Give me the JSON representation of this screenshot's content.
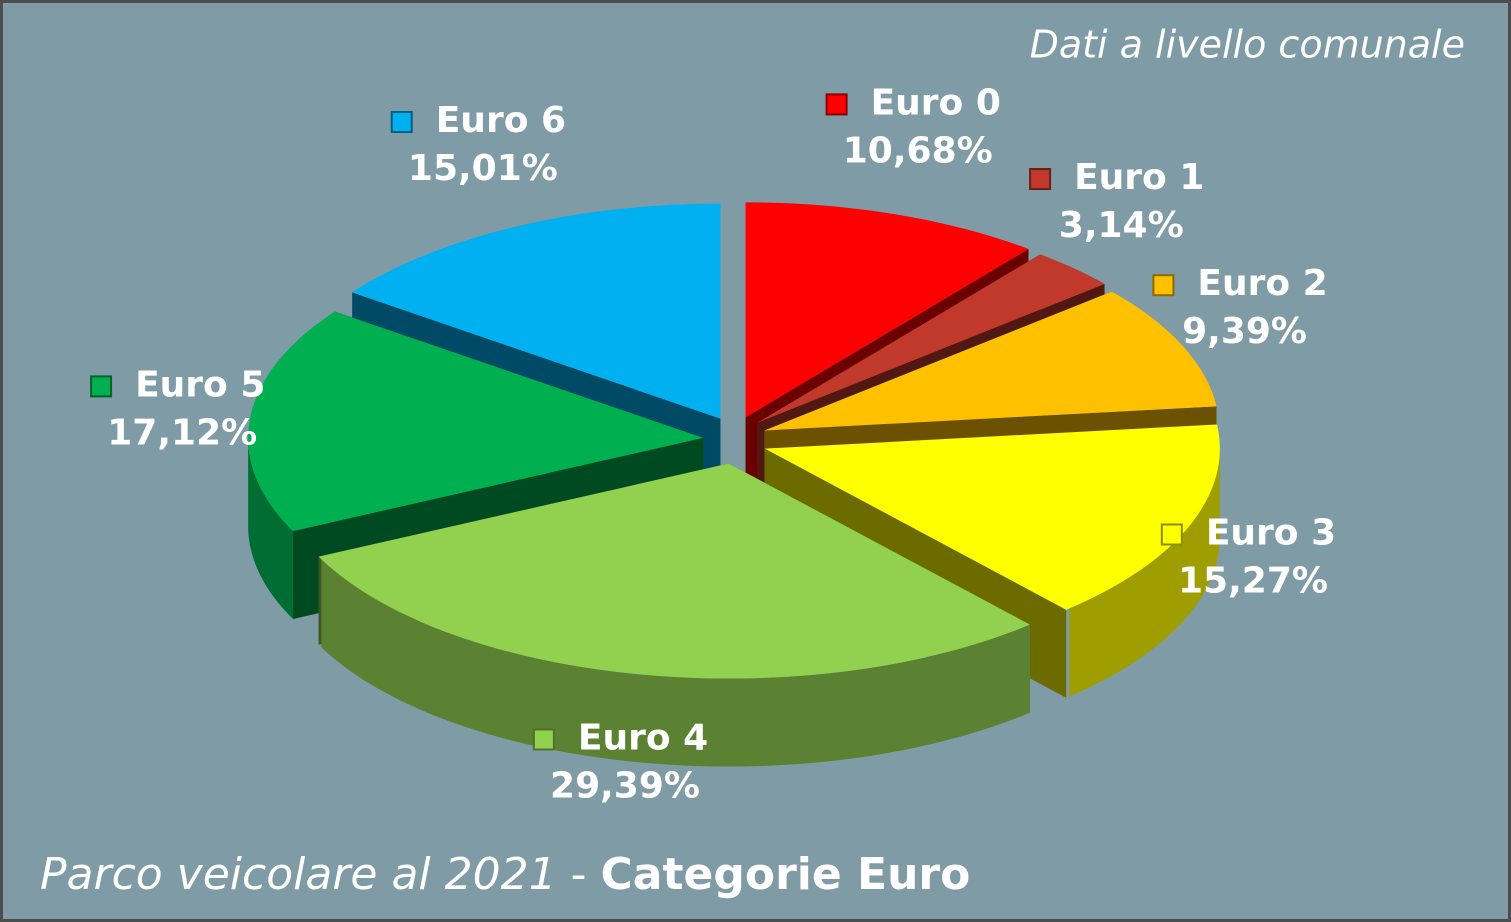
{
  "chart_data": {
    "type": "pie3d",
    "title_parts": [
      "Parco veicolare al 2021",
      "-",
      "Categorie Euro"
    ],
    "note": "Dati a livello comunale",
    "categories": [
      "Euro 0",
      "Euro 1",
      "Euro 2",
      "Euro 3",
      "Euro 4",
      "Euro 5",
      "Euro 6"
    ],
    "values": [
      10.68,
      3.14,
      9.39,
      15.27,
      29.39,
      17.12,
      15.01
    ],
    "value_labels": [
      "10,68%",
      "3,14%",
      "9,39%",
      "15,27%",
      "29,39%",
      "17,12%",
      "15,01%"
    ],
    "colors": [
      "#ff0000",
      "#c0392b",
      "#ffc000",
      "#ffff00",
      "#92d050",
      "#00b050",
      "#00b0f0"
    ]
  }
}
